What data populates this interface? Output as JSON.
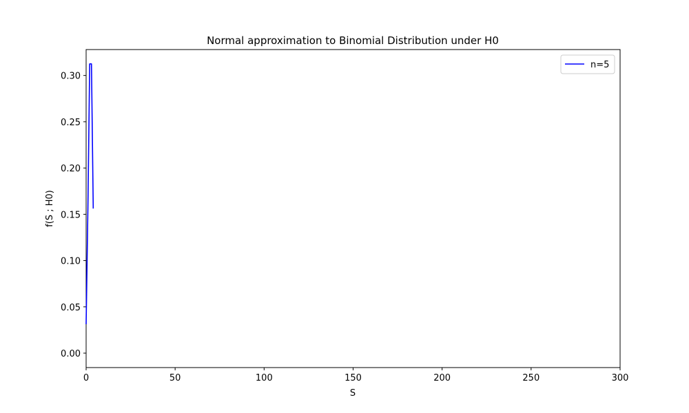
{
  "chart_data": {
    "type": "line",
    "title": "Normal approximation to Binomial Distribution under H0",
    "xlabel": "S",
    "ylabel": "f(S ; H0)",
    "xlim": [
      0,
      300
    ],
    "ylim": [
      -0.0156,
      0.328
    ],
    "x_ticks": [
      0,
      50,
      100,
      150,
      200,
      250,
      300
    ],
    "y_ticks": [
      0.0,
      0.05,
      0.1,
      0.15,
      0.2,
      0.25,
      0.3
    ],
    "x_tick_labels": [
      "0",
      "50",
      "100",
      "150",
      "200",
      "250",
      "300"
    ],
    "y_tick_labels": [
      "0.00",
      "0.05",
      "0.10",
      "0.15",
      "0.20",
      "0.25",
      "0.30"
    ],
    "grid": false,
    "legend_position": "top-right",
    "series": [
      {
        "name": "n=5",
        "color": "#0000ff",
        "x": [
          0,
          1,
          2,
          3,
          4
        ],
        "y": [
          0.03125,
          0.15625,
          0.3125,
          0.3125,
          0.15625
        ]
      }
    ]
  }
}
